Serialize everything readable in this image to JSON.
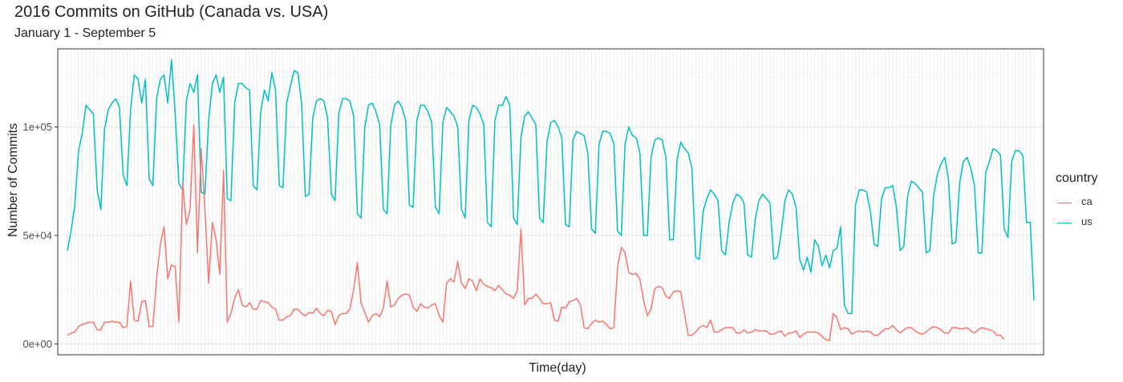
{
  "chart_data": {
    "type": "line",
    "title": "2016 Commits on GitHub (Canada vs. USA)",
    "subtitle": "January 1 - September 5",
    "xlabel": "Time(day)",
    "ylabel": "Number of Commits",
    "ylim": [
      -5000,
      136000
    ],
    "y_ticks": [
      0,
      50000,
      100000
    ],
    "y_tick_labels": [
      "0e+00",
      "5e+04",
      "1e+05"
    ],
    "x_tick_labels": [],
    "grid": true,
    "legend": {
      "title": "country",
      "placement": "right"
    },
    "x": {
      "start_day": 1,
      "end_day": 249
    },
    "series": [
      {
        "name": "us",
        "color": "#00BFC4",
        "values": [
          43000,
          52000,
          64000,
          89000,
          97000,
          110000,
          108000,
          106000,
          71000,
          62000,
          99000,
          108000,
          111000,
          113000,
          109000,
          78000,
          73000,
          108000,
          124000,
          122000,
          111000,
          122000,
          76000,
          73000,
          113000,
          122000,
          124000,
          111000,
          131000,
          106000,
          74000,
          71000,
          112000,
          120000,
          116000,
          124000,
          70000,
          69000,
          103000,
          120000,
          124000,
          116000,
          123000,
          67000,
          66000,
          111000,
          120000,
          120000,
          118000,
          117000,
          73000,
          71000,
          107000,
          117000,
          112000,
          125000,
          117000,
          73000,
          72000,
          111000,
          119000,
          126000,
          125000,
          111000,
          68000,
          69000,
          104000,
          112000,
          113000,
          112000,
          104000,
          69000,
          66000,
          106000,
          113000,
          113000,
          112000,
          105000,
          60000,
          58000,
          100000,
          110000,
          111000,
          107000,
          101000,
          62000,
          60000,
          101000,
          110000,
          112000,
          109000,
          103000,
          64000,
          63000,
          103000,
          110000,
          110000,
          107000,
          102000,
          63000,
          60000,
          102000,
          109000,
          107000,
          105000,
          100000,
          62000,
          58000,
          103000,
          110000,
          109000,
          106000,
          101000,
          56000,
          54000,
          103000,
          110000,
          110000,
          114000,
          110000,
          58000,
          55000,
          95000,
          105000,
          107000,
          104000,
          101000,
          58000,
          56000,
          93000,
          102000,
          103000,
          100000,
          95000,
          55000,
          54000,
          94000,
          98000,
          97000,
          96000,
          88000,
          53000,
          51000,
          92000,
          98000,
          98000,
          97000,
          92000,
          52000,
          50000,
          92000,
          100000,
          96000,
          95000,
          88000,
          50000,
          50000,
          86000,
          94000,
          95000,
          94000,
          86000,
          48000,
          48000,
          85000,
          93000,
          90000,
          88000,
          81000,
          40000,
          39000,
          61000,
          67000,
          71000,
          69000,
          66000,
          43000,
          41000,
          56000,
          65000,
          69000,
          68000,
          65000,
          41000,
          40000,
          57000,
          66000,
          69000,
          67000,
          65000,
          39000,
          40000,
          51000,
          66000,
          71000,
          69000,
          63000,
          39000,
          34000,
          40000,
          33000,
          48000,
          45000,
          36000,
          41000,
          35000,
          43000,
          44000,
          54000,
          18000,
          14000,
          14000,
          64000,
          71000,
          71000,
          70000,
          61000,
          46000,
          45000,
          67000,
          72000,
          72000,
          73000,
          63000,
          43000,
          45000,
          68000,
          75000,
          74000,
          72000,
          70000,
          42000,
          43000,
          68000,
          78000,
          83000,
          86000,
          76000,
          46000,
          47000,
          74000,
          84000,
          86000,
          81000,
          73000,
          42000,
          42000,
          79000,
          84000,
          90000,
          89000,
          87000,
          53000,
          49000,
          84000,
          89000,
          89000,
          87000,
          56000,
          56000,
          20000
        ]
      },
      {
        "name": "ca",
        "color": "#F8766D",
        "values": [
          4000,
          5000,
          5500,
          8000,
          9000,
          9500,
          10000,
          10000,
          6500,
          6500,
          10000,
          10000,
          10500,
          10000,
          10000,
          7500,
          8000,
          29000,
          11000,
          10500,
          19500,
          20000,
          8000,
          8000,
          30000,
          46000,
          54000,
          30000,
          36500,
          35500,
          10000,
          74000,
          55000,
          62000,
          101000,
          42000,
          90000,
          62000,
          28000,
          56000,
          48000,
          32000,
          80000,
          10000,
          14000,
          21000,
          25000,
          18000,
          17000,
          19000,
          16000,
          16000,
          20000,
          19500,
          19000,
          17000,
          16000,
          11000,
          11000,
          12500,
          13000,
          16000,
          16000,
          14000,
          13000,
          14500,
          14000,
          16500,
          14000,
          13000,
          15500,
          15000,
          9000,
          13000,
          14000,
          14000,
          16000,
          25000,
          37500,
          19000,
          14500,
          10000,
          13000,
          14000,
          12500,
          16500,
          29000,
          17000,
          18000,
          21000,
          22500,
          23000,
          22500,
          17000,
          15000,
          18500,
          17000,
          16500,
          18000,
          18500,
          13000,
          10000,
          28000,
          30000,
          28500,
          38000,
          28000,
          25500,
          30000,
          29000,
          24500,
          30000,
          27500,
          26500,
          26000,
          24500,
          27000,
          25000,
          23000,
          22500,
          21000,
          24500,
          53000,
          18000,
          21000,
          21000,
          23000,
          21000,
          18500,
          18500,
          19000,
          11000,
          10500,
          17000,
          16500,
          19500,
          20000,
          21000,
          18000,
          7500,
          7000,
          9500,
          11000,
          10000,
          10500,
          9000,
          7000,
          7500,
          35500,
          44500,
          42000,
          33000,
          32000,
          32500,
          30000,
          20000,
          13000,
          16000,
          25500,
          26500,
          26000,
          22000,
          21000,
          24000,
          24500,
          24000,
          14000,
          4000,
          4000,
          5500,
          7500,
          8500,
          7500,
          11000,
          5500,
          5500,
          6500,
          7500,
          7500,
          7500,
          5000,
          5000,
          6500,
          5000,
          5500,
          6500,
          6000,
          6000,
          6000,
          4500,
          4500,
          5500,
          6000,
          3500,
          5000,
          5000,
          6000,
          3000,
          4500,
          5500,
          5500,
          5500,
          5000,
          3500,
          2000,
          1500,
          14000,
          12000,
          6500,
          7500,
          7000,
          4500,
          5500,
          6000,
          5500,
          6000,
          5500,
          4000,
          4000,
          5500,
          7000,
          7000,
          8500,
          6500,
          5000,
          6500,
          7500,
          7500,
          6000,
          5000,
          4500,
          5500,
          7000,
          8000,
          7500,
          6500,
          5000,
          5000,
          7500,
          7500,
          7000,
          7000,
          7500,
          6000,
          5000,
          6500,
          7500,
          7000,
          6500,
          6000,
          4000,
          4000,
          2000
        ]
      }
    ]
  }
}
